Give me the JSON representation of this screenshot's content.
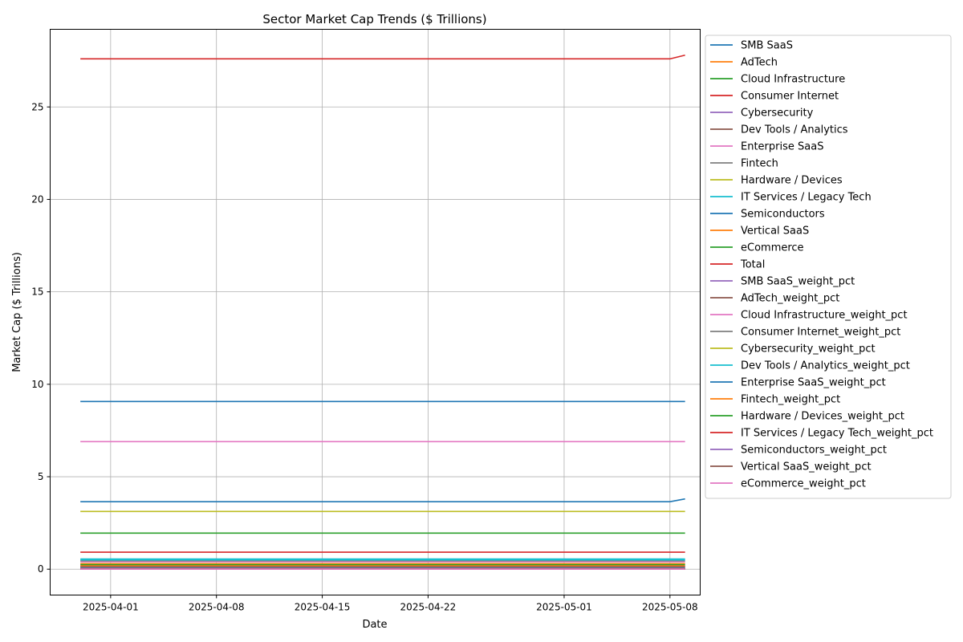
{
  "chart_data": {
    "type": "line",
    "title": "Sector Market Cap Trends ($ Trillions)",
    "xlabel": "Date",
    "ylabel": "Market Cap ($ Trillions)",
    "x": [
      "2025-03-30",
      "2025-05-08",
      "2025-05-09"
    ],
    "xlim": [
      "2025-03-28",
      "2025-05-10"
    ],
    "ylim": [
      -1.4,
      29.2
    ],
    "x_ticks": [
      "2025-04-01",
      "2025-04-08",
      "2025-04-15",
      "2025-04-22",
      "2025-05-01",
      "2025-05-08"
    ],
    "y_ticks": [
      0,
      5,
      10,
      15,
      20,
      25
    ],
    "grid": true,
    "legend_position": "outside-right",
    "series": [
      {
        "name": "SMB SaaS",
        "color": "#1f77b4",
        "values": [
          0.1,
          0.1,
          0.1
        ]
      },
      {
        "name": "AdTech",
        "color": "#ff7f0e",
        "values": [
          0.3,
          0.3,
          0.3
        ]
      },
      {
        "name": "Cloud Infrastructure",
        "color": "#2ca02c",
        "values": [
          1.95,
          1.95,
          1.95
        ]
      },
      {
        "name": "Consumer Internet",
        "color": "#d62728",
        "values": [
          0.92,
          0.92,
          0.92
        ]
      },
      {
        "name": "Cybersecurity",
        "color": "#9467bd",
        "values": [
          0.12,
          0.12,
          0.12
        ]
      },
      {
        "name": "Dev Tools / Analytics",
        "color": "#8c564b",
        "values": [
          0.15,
          0.15,
          0.15
        ]
      },
      {
        "name": "Enterprise SaaS",
        "color": "#e377c2",
        "values": [
          0.4,
          0.4,
          0.4
        ]
      },
      {
        "name": "Fintech",
        "color": "#7f7f7f",
        "values": [
          0.45,
          0.45,
          0.45
        ]
      },
      {
        "name": "Hardware / Devices",
        "color": "#bcbd22",
        "values": [
          3.12,
          3.12,
          3.12
        ]
      },
      {
        "name": "IT Services / Legacy Tech",
        "color": "#17becf",
        "values": [
          0.55,
          0.55,
          0.55
        ]
      },
      {
        "name": "Semiconductors",
        "color": "#1f77b4",
        "values": [
          3.65,
          3.65,
          3.8
        ]
      },
      {
        "name": "Vertical SaaS",
        "color": "#ff7f0e",
        "values": [
          0.2,
          0.2,
          0.2
        ]
      },
      {
        "name": "eCommerce",
        "color": "#2ca02c",
        "values": [
          0.25,
          0.25,
          0.25
        ]
      },
      {
        "name": "Total",
        "color": "#d62728",
        "values": [
          27.6,
          27.6,
          27.8
        ]
      },
      {
        "name": "SMB SaaS_weight_pct",
        "color": "#9467bd",
        "values": [
          0.004,
          0.004,
          0.004
        ]
      },
      {
        "name": "AdTech_weight_pct",
        "color": "#8c564b",
        "values": [
          0.011,
          0.011,
          0.011
        ]
      },
      {
        "name": "Cloud Infrastructure_weight_pct",
        "color": "#e377c2",
        "values": [
          6.9,
          6.9,
          6.9
        ]
      },
      {
        "name": "Consumer Internet_weight_pct",
        "color": "#7f7f7f",
        "values": [
          0.033,
          0.033,
          0.033
        ]
      },
      {
        "name": "Cybersecurity_weight_pct",
        "color": "#bcbd22",
        "values": [
          0.004,
          0.004,
          0.004
        ]
      },
      {
        "name": "Dev Tools / Analytics_weight_pct",
        "color": "#17becf",
        "values": [
          0.5,
          0.5,
          0.5
        ]
      },
      {
        "name": "Enterprise SaaS_weight_pct",
        "color": "#1f77b4",
        "values": [
          9.07,
          9.07,
          9.07
        ]
      },
      {
        "name": "Fintech_weight_pct",
        "color": "#ff7f0e",
        "values": [
          0.016,
          0.016,
          0.016
        ]
      },
      {
        "name": "Hardware / Devices_weight_pct",
        "color": "#2ca02c",
        "values": [
          0.03,
          0.03,
          0.03
        ]
      },
      {
        "name": "IT Services / Legacy Tech_weight_pct",
        "color": "#d62728",
        "values": [
          0.02,
          0.02,
          0.02
        ]
      },
      {
        "name": "Semiconductors_weight_pct",
        "color": "#9467bd",
        "values": [
          0.0,
          0.0,
          0.0
        ]
      },
      {
        "name": "Vertical SaaS_weight_pct",
        "color": "#8c564b",
        "values": [
          0.007,
          0.007,
          0.007
        ]
      },
      {
        "name": "eCommerce_weight_pct",
        "color": "#e377c2",
        "values": [
          0.009,
          0.009,
          0.009
        ]
      }
    ]
  }
}
